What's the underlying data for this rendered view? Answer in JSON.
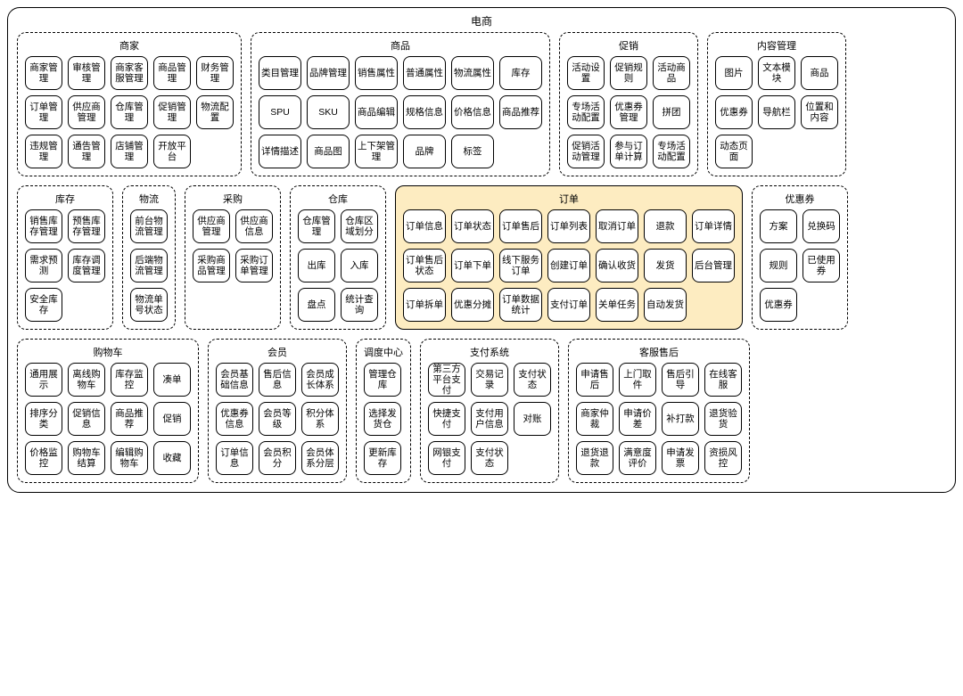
{
  "root_title": "电商",
  "colors": {
    "highlight_bg": "#fdecc1",
    "border": "#000000",
    "background": "#ffffff"
  },
  "rows": [
    {
      "groups": [
        {
          "id": "merchant",
          "title": "商家",
          "cols": 5,
          "highlighted": false,
          "items": [
            "商家管理",
            "审核管理",
            "商家客服管理",
            "商品管理",
            "财务管理",
            "订单管理",
            "供应商管理",
            "仓库管理",
            "促销管理",
            "物流配置",
            "违规管理",
            "通告管理",
            "店铺管理",
            "开放平台"
          ]
        },
        {
          "id": "product",
          "title": "商品",
          "cols": 6,
          "highlighted": false,
          "items": [
            "类目管理",
            "品牌管理",
            "销售属性",
            "普通属性",
            "物流属性",
            "库存",
            "SPU",
            "SKU",
            "商品编辑",
            "规格信息",
            "价格信息",
            "商品推荐",
            "详情描述",
            "商品图",
            "上下架管理",
            "品牌",
            "标签"
          ]
        },
        {
          "id": "promotion",
          "title": "促销",
          "cols": 3,
          "highlighted": false,
          "items": [
            "活动设置",
            "促销规则",
            "活动商品",
            "专场活动配置",
            "优惠券管理",
            "拼团",
            "促销活动管理",
            "参与订单计算",
            "专场活动配置"
          ]
        },
        {
          "id": "content",
          "title": "内容管理",
          "cols": 3,
          "highlighted": false,
          "items": [
            "图片",
            "文本模块",
            "商品",
            "优惠券",
            "导航栏",
            "位置和内容",
            "动态页面"
          ]
        }
      ]
    },
    {
      "groups": [
        {
          "id": "inventory",
          "title": "库存",
          "cols": 2,
          "highlighted": false,
          "items": [
            "销售库存管理",
            "预售库存管理",
            "需求预测",
            "库存调度管理",
            "安全库存"
          ]
        },
        {
          "id": "logistics",
          "title": "物流",
          "cols": 1,
          "highlighted": false,
          "items": [
            "前台物流管理",
            "后端物流管理",
            "物流单号状态"
          ]
        },
        {
          "id": "procurement",
          "title": "采购",
          "cols": 2,
          "highlighted": false,
          "items": [
            "供应商管理",
            "供应商信息",
            "采购商品管理",
            "采购订单管理"
          ]
        },
        {
          "id": "warehouse",
          "title": "仓库",
          "cols": 2,
          "highlighted": false,
          "items": [
            "仓库管理",
            "仓库区域划分",
            "出库",
            "入库",
            "盘点",
            "统计查询"
          ]
        },
        {
          "id": "order",
          "title": "订单",
          "cols": 7,
          "highlighted": true,
          "items": [
            "订单信息",
            "订单状态",
            "订单售后",
            "订单列表",
            "取消订单",
            "退款",
            "订单详情",
            "订单售后状态",
            "订单下单",
            "线下服务订单",
            "创建订单",
            "确认收货",
            "发货",
            "后台管理",
            "订单拆单",
            "优惠分摊",
            "订单数据统计",
            "支付订单",
            "关单任务",
            "自动发货"
          ]
        },
        {
          "id": "coupon",
          "title": "优惠券",
          "cols": 2,
          "highlighted": false,
          "items": [
            "方案",
            "兑换码",
            "规则",
            "已使用券",
            "优惠券"
          ]
        }
      ]
    },
    {
      "groups": [
        {
          "id": "cart",
          "title": "购物车",
          "cols": 4,
          "highlighted": false,
          "items": [
            "通用展示",
            "离线购物车",
            "库存监控",
            "凑单",
            "排序分类",
            "促销信息",
            "商品推荐",
            "促销",
            "价格监控",
            "购物车结算",
            "编辑购物车",
            "收藏"
          ]
        },
        {
          "id": "member",
          "title": "会员",
          "cols": 3,
          "highlighted": false,
          "items": [
            "会员基础信息",
            "售后信息",
            "会员成长体系",
            "优惠券信息",
            "会员等级",
            "积分体系",
            "订单信息",
            "会员积分",
            "会员体系分层"
          ]
        },
        {
          "id": "dispatch",
          "title": "调度中心",
          "cols": 1,
          "highlighted": false,
          "items": [
            "管理仓库",
            "选择发货仓",
            "更新库存"
          ]
        },
        {
          "id": "payment",
          "title": "支付系统",
          "cols": 3,
          "highlighted": false,
          "items": [
            "第三方平台支付",
            "交易记录",
            "支付状态",
            "快捷支付",
            "支付用户信息",
            "对账",
            "网银支付",
            "支付状态"
          ]
        },
        {
          "id": "aftersale",
          "title": "客服售后",
          "cols": 4,
          "highlighted": false,
          "items": [
            "申请售后",
            "上门取件",
            "售后引导",
            "在线客服",
            "商家仲裁",
            "申请价差",
            "补打款",
            "退货验货",
            "退货退款",
            "满意度评价",
            "申请发票",
            "资损风控"
          ]
        }
      ]
    }
  ]
}
